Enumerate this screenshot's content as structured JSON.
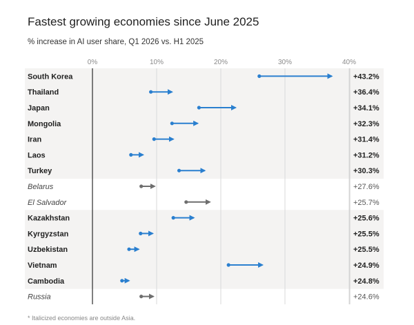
{
  "chart_data": {
    "type": "dumbbell",
    "title": "Fastest growing economies since June 2025",
    "subtitle": "% increase in AI user share, Q1 2026 vs. H1 2025",
    "x_ticks": [
      "0%",
      "10%",
      "20%",
      "30%",
      "40%"
    ],
    "xlim": [
      0,
      40
    ],
    "footnote": "* Italicized economies are outside Asia.",
    "colors": {
      "asia": "#2a7fcf",
      "outside_asia": "#6e6e6e"
    },
    "rows": [
      {
        "name": "South Korea",
        "start": 26.0,
        "end": 37.3,
        "change": "+43.2%",
        "asia": true
      },
      {
        "name": "Thailand",
        "start": 9.1,
        "end": 12.4,
        "change": "+36.4%",
        "asia": true
      },
      {
        "name": "Japan",
        "start": 16.6,
        "end": 22.3,
        "change": "+34.1%",
        "asia": true
      },
      {
        "name": "Mongolia",
        "start": 12.4,
        "end": 16.4,
        "change": "+32.3%",
        "asia": true
      },
      {
        "name": "Iran",
        "start": 9.6,
        "end": 12.6,
        "change": "+31.4%",
        "asia": true
      },
      {
        "name": "Laos",
        "start": 6.0,
        "end": 7.9,
        "change": "+31.2%",
        "asia": true
      },
      {
        "name": "Turkey",
        "start": 13.5,
        "end": 17.5,
        "change": "+30.3%",
        "asia": true
      },
      {
        "name": "Belarus",
        "start": 7.6,
        "end": 9.7,
        "change": "+27.6%",
        "asia": false
      },
      {
        "name": "El Salvador",
        "start": 14.6,
        "end": 18.3,
        "change": "+25.7%",
        "asia": false
      },
      {
        "name": "Kazakhstan",
        "start": 12.6,
        "end": 15.8,
        "change": "+25.6%",
        "asia": true
      },
      {
        "name": "Kyrgyzstan",
        "start": 7.5,
        "end": 9.4,
        "change": "+25.5%",
        "asia": true
      },
      {
        "name": "Uzbekistan",
        "start": 5.7,
        "end": 7.2,
        "change": "+25.5%",
        "asia": true
      },
      {
        "name": "Vietnam",
        "start": 21.2,
        "end": 26.5,
        "change": "+24.9%",
        "asia": true
      },
      {
        "name": "Cambodia",
        "start": 4.6,
        "end": 5.7,
        "change": "+24.8%",
        "asia": true
      },
      {
        "name": "Russia",
        "start": 7.6,
        "end": 9.5,
        "change": "+24.6%",
        "asia": false
      }
    ]
  }
}
